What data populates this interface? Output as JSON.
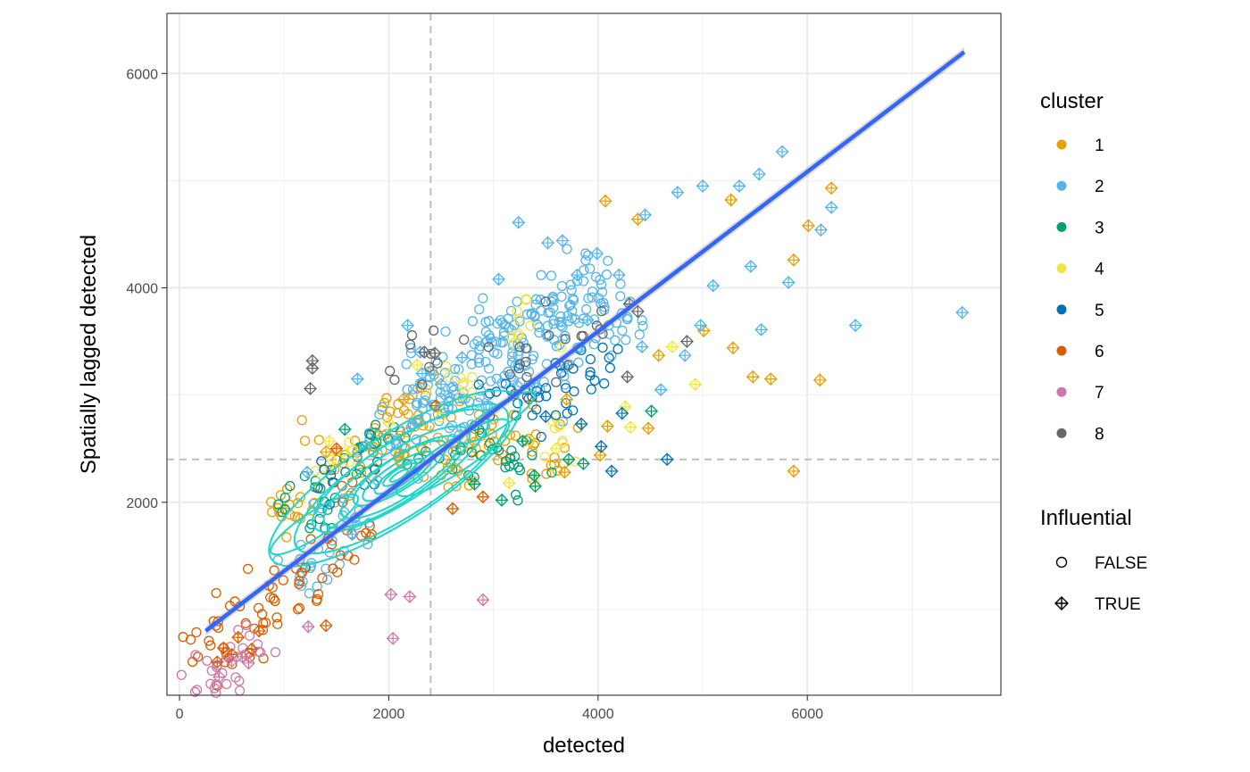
{
  "chart_data": {
    "type": "scatter",
    "title": "",
    "xlabel": "detected",
    "ylabel": "Spatially lagged detected",
    "xlim": [
      -120,
      7850
    ],
    "ylim": [
      200,
      6560
    ],
    "x_ticks": [
      0,
      2000,
      4000,
      6000
    ],
    "y_ticks": [
      2000,
      4000,
      6000
    ],
    "grid": true,
    "reference_lines": {
      "x_dashed": 2400,
      "y_dashed": 2400
    },
    "regression_line": {
      "color": "#3366FF",
      "from": [
        250,
        800
      ],
      "to": [
        7500,
        6200
      ]
    },
    "density_contours": {
      "color": "#1fd6c8",
      "center": [
        2100,
        2250
      ],
      "shape": "elliptical cluster of contour rings"
    },
    "legend": {
      "position": "right",
      "cluster": {
        "title": "cluster",
        "entries": [
          {
            "label": "1",
            "color": "#E69F00"
          },
          {
            "label": "2",
            "color": "#56B4E9"
          },
          {
            "label": "3",
            "color": "#009E73"
          },
          {
            "label": "4",
            "color": "#F0E442"
          },
          {
            "label": "5",
            "color": "#0072B2"
          },
          {
            "label": "6",
            "color": "#D55E00"
          },
          {
            "label": "7",
            "color": "#CC79A7"
          },
          {
            "label": "8",
            "color": "#666666"
          }
        ]
      },
      "influential": {
        "title": "Influential",
        "entries": [
          {
            "label": "FALSE",
            "shape": "open-circle"
          },
          {
            "label": "TRUE",
            "shape": "diamond-plus"
          }
        ]
      }
    },
    "series": [
      {
        "name": "1",
        "points": [
          [
            1000,
            2000
          ],
          [
            1200,
            2050
          ],
          [
            1500,
            2300
          ],
          [
            1800,
            2500
          ],
          [
            2000,
            2600
          ],
          [
            2200,
            2800
          ],
          [
            2500,
            2700
          ],
          [
            2800,
            2600
          ],
          [
            3000,
            2500
          ],
          [
            3300,
            2600
          ],
          [
            3500,
            2400
          ],
          [
            2600,
            2200
          ],
          [
            2300,
            2500
          ],
          [
            2100,
            2900
          ]
        ]
      },
      {
        "name": "2",
        "points": [
          [
            1300,
            1400
          ],
          [
            1600,
            1800
          ],
          [
            2000,
            2600
          ],
          [
            2300,
            3000
          ],
          [
            2500,
            3100
          ],
          [
            2800,
            3300
          ],
          [
            3000,
            3500
          ],
          [
            3200,
            3600
          ],
          [
            3400,
            3700
          ],
          [
            3600,
            3800
          ],
          [
            3800,
            3900
          ],
          [
            4000,
            4000
          ],
          [
            4200,
            3600
          ],
          [
            3700,
            3400
          ],
          [
            3300,
            3200
          ],
          [
            2900,
            3000
          ],
          [
            2600,
            2800
          ]
        ]
      },
      {
        "name": "3",
        "points": [
          [
            1200,
            1900
          ],
          [
            1400,
            2100
          ],
          [
            1700,
            2400
          ],
          [
            2100,
            2500
          ],
          [
            2700,
            2500
          ],
          [
            3000,
            2300
          ],
          [
            3200,
            2400
          ]
        ]
      },
      {
        "name": "4",
        "points": [
          [
            1500,
            2400
          ],
          [
            2600,
            3100
          ],
          [
            3300,
            3700
          ],
          [
            3600,
            2600
          ]
        ]
      },
      {
        "name": "5",
        "points": [
          [
            1500,
            2300
          ],
          [
            3200,
            3000
          ],
          [
            3700,
            3100
          ],
          [
            4000,
            3200
          ],
          [
            3500,
            2900
          ]
        ]
      },
      {
        "name": "6",
        "points": [
          [
            300,
            650
          ],
          [
            500,
            700
          ],
          [
            700,
            900
          ],
          [
            900,
            1100
          ],
          [
            1100,
            1300
          ],
          [
            1400,
            1600
          ],
          [
            1700,
            1800
          ]
        ]
      },
      {
        "name": "7",
        "points": [
          [
            250,
            350
          ],
          [
            400,
            450
          ],
          [
            600,
            600
          ]
        ]
      },
      {
        "name": "8",
        "points": [
          [
            2400,
            3400
          ],
          [
            3200,
            3200
          ],
          [
            3800,
            3600
          ]
        ]
      }
    ],
    "influential_points": [
      {
        "cluster": "1",
        "x": 4070,
        "y": 4810
      },
      {
        "cluster": "1",
        "x": 4380,
        "y": 4640
      },
      {
        "cluster": "1",
        "x": 6010,
        "y": 4580
      },
      {
        "cluster": "1",
        "x": 6230,
        "y": 4930
      },
      {
        "cluster": "1",
        "x": 5270,
        "y": 4820
      },
      {
        "cluster": "1",
        "x": 5870,
        "y": 4260
      },
      {
        "cluster": "1",
        "x": 5290,
        "y": 3440
      },
      {
        "cluster": "1",
        "x": 5010,
        "y": 3600
      },
      {
        "cluster": "1",
        "x": 5480,
        "y": 3170
      },
      {
        "cluster": "1",
        "x": 5650,
        "y": 3150
      },
      {
        "cluster": "1",
        "x": 6120,
        "y": 3140
      },
      {
        "cluster": "1",
        "x": 5870,
        "y": 2290
      },
      {
        "cluster": "1",
        "x": 4480,
        "y": 2690
      },
      {
        "cluster": "1",
        "x": 4580,
        "y": 3370
      },
      {
        "cluster": "1",
        "x": 3700,
        "y": 2960
      },
      {
        "cluster": "1",
        "x": 3680,
        "y": 2280
      },
      {
        "cluster": "1",
        "x": 4020,
        "y": 2440
      },
      {
        "cluster": "1",
        "x": 4090,
        "y": 2710
      },
      {
        "cluster": "1",
        "x": 2140,
        "y": 2960
      },
      {
        "cluster": "1",
        "x": 1400,
        "y": 2470
      },
      {
        "cluster": "2",
        "x": 1780,
        "y": 2530
      },
      {
        "cluster": "2",
        "x": 1220,
        "y": 2280
      },
      {
        "cluster": "2",
        "x": 1700,
        "y": 3150
      },
      {
        "cluster": "2",
        "x": 2180,
        "y": 3650
      },
      {
        "cluster": "2",
        "x": 2300,
        "y": 3400
      },
      {
        "cluster": "2",
        "x": 2500,
        "y": 3100
      },
      {
        "cluster": "2",
        "x": 2700,
        "y": 3350
      },
      {
        "cluster": "2",
        "x": 3050,
        "y": 4080
      },
      {
        "cluster": "2",
        "x": 3240,
        "y": 4610
      },
      {
        "cluster": "2",
        "x": 3520,
        "y": 4420
      },
      {
        "cluster": "2",
        "x": 3660,
        "y": 4440
      },
      {
        "cluster": "2",
        "x": 3800,
        "y": 4120
      },
      {
        "cluster": "2",
        "x": 3990,
        "y": 4320
      },
      {
        "cluster": "2",
        "x": 4200,
        "y": 4120
      },
      {
        "cluster": "2",
        "x": 4450,
        "y": 4680
      },
      {
        "cluster": "2",
        "x": 4760,
        "y": 4890
      },
      {
        "cluster": "2",
        "x": 5000,
        "y": 4950
      },
      {
        "cluster": "2",
        "x": 5350,
        "y": 4950
      },
      {
        "cluster": "2",
        "x": 5760,
        "y": 5270
      },
      {
        "cluster": "2",
        "x": 5540,
        "y": 5060
      },
      {
        "cluster": "2",
        "x": 6230,
        "y": 4750
      },
      {
        "cluster": "2",
        "x": 6130,
        "y": 4540
      },
      {
        "cluster": "2",
        "x": 5820,
        "y": 4050
      },
      {
        "cluster": "2",
        "x": 5460,
        "y": 4200
      },
      {
        "cluster": "2",
        "x": 5100,
        "y": 4020
      },
      {
        "cluster": "2",
        "x": 4980,
        "y": 3650
      },
      {
        "cluster": "2",
        "x": 5560,
        "y": 3610
      },
      {
        "cluster": "2",
        "x": 6460,
        "y": 3650
      },
      {
        "cluster": "2",
        "x": 7480,
        "y": 3770
      },
      {
        "cluster": "2",
        "x": 4600,
        "y": 3050
      },
      {
        "cluster": "2",
        "x": 4420,
        "y": 3450
      },
      {
        "cluster": "2",
        "x": 4830,
        "y": 3370
      },
      {
        "cluster": "2",
        "x": 1650,
        "y": 1700
      },
      {
        "cluster": "2",
        "x": 2320,
        "y": 3200
      },
      {
        "cluster": "2",
        "x": 3900,
        "y": 3700
      },
      {
        "cluster": "3",
        "x": 2820,
        "y": 2170
      },
      {
        "cluster": "3",
        "x": 3080,
        "y": 2020
      },
      {
        "cluster": "3",
        "x": 3390,
        "y": 2250
      },
      {
        "cluster": "3",
        "x": 3400,
        "y": 2150
      },
      {
        "cluster": "3",
        "x": 3720,
        "y": 2400
      },
      {
        "cluster": "3",
        "x": 3860,
        "y": 2360
      },
      {
        "cluster": "3",
        "x": 4510,
        "y": 2850
      },
      {
        "cluster": "3",
        "x": 3280,
        "y": 2570
      },
      {
        "cluster": "3",
        "x": 1580,
        "y": 2680
      },
      {
        "cluster": "4",
        "x": 2270,
        "y": 3280
      },
      {
        "cluster": "4",
        "x": 1430,
        "y": 2570
      },
      {
        "cluster": "4",
        "x": 2000,
        "y": 2740
      },
      {
        "cluster": "4",
        "x": 3150,
        "y": 2180
      },
      {
        "cluster": "4",
        "x": 4310,
        "y": 2700
      },
      {
        "cluster": "4",
        "x": 4710,
        "y": 3450
      },
      {
        "cluster": "4",
        "x": 4930,
        "y": 3100
      },
      {
        "cluster": "4",
        "x": 4260,
        "y": 2890
      },
      {
        "cluster": "4",
        "x": 3600,
        "y": 2500
      },
      {
        "cluster": "5",
        "x": 4130,
        "y": 2290
      },
      {
        "cluster": "5",
        "x": 4030,
        "y": 2520
      },
      {
        "cluster": "5",
        "x": 4660,
        "y": 2400
      },
      {
        "cluster": "5",
        "x": 4230,
        "y": 2830
      },
      {
        "cluster": "5",
        "x": 3840,
        "y": 2730
      },
      {
        "cluster": "5",
        "x": 3500,
        "y": 2800
      },
      {
        "cluster": "6",
        "x": 2900,
        "y": 2050
      },
      {
        "cluster": "6",
        "x": 2610,
        "y": 1940
      },
      {
        "cluster": "6",
        "x": 1400,
        "y": 850
      },
      {
        "cluster": "6",
        "x": 690,
        "y": 630
      },
      {
        "cluster": "6",
        "x": 500,
        "y": 580
      },
      {
        "cluster": "6",
        "x": 420,
        "y": 640
      },
      {
        "cluster": "6",
        "x": 360,
        "y": 510
      },
      {
        "cluster": "6",
        "x": 560,
        "y": 740
      },
      {
        "cluster": "6",
        "x": 760,
        "y": 800
      },
      {
        "cluster": "6",
        "x": 1500,
        "y": 2500
      },
      {
        "cluster": "6",
        "x": 2450,
        "y": 2900
      },
      {
        "cluster": "7",
        "x": 2020,
        "y": 1140
      },
      {
        "cluster": "7",
        "x": 2200,
        "y": 1120
      },
      {
        "cluster": "7",
        "x": 2900,
        "y": 1090
      },
      {
        "cluster": "7",
        "x": 1230,
        "y": 840
      },
      {
        "cluster": "7",
        "x": 2040,
        "y": 730
      },
      {
        "cluster": "7",
        "x": 660,
        "y": 500
      },
      {
        "cluster": "7",
        "x": 380,
        "y": 370
      },
      {
        "cluster": "7",
        "x": 500,
        "y": 520
      },
      {
        "cluster": "7",
        "x": 600,
        "y": 560
      },
      {
        "cluster": "8",
        "x": 1270,
        "y": 3320
      },
      {
        "cluster": "8",
        "x": 1270,
        "y": 3250
      },
      {
        "cluster": "8",
        "x": 1250,
        "y": 3060
      },
      {
        "cluster": "8",
        "x": 2440,
        "y": 3390
      },
      {
        "cluster": "8",
        "x": 2340,
        "y": 3400
      },
      {
        "cluster": "8",
        "x": 4280,
        "y": 3170
      },
      {
        "cluster": "8",
        "x": 4850,
        "y": 3500
      },
      {
        "cluster": "8",
        "x": 4380,
        "y": 3780
      },
      {
        "cluster": "8",
        "x": 4300,
        "y": 3850
      }
    ]
  }
}
